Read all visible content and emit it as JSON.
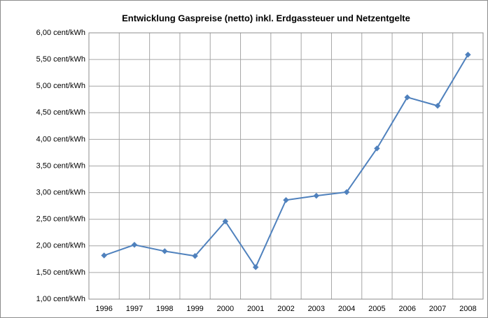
{
  "chart_data": {
    "type": "line",
    "title": "Entwicklung Gaspreise (netto) inkl. Erdgassteuer und Netzentgelte",
    "categories": [
      "1996",
      "1997",
      "1998",
      "1999",
      "2000",
      "2001",
      "2002",
      "2003",
      "2004",
      "2005",
      "2006",
      "2007",
      "2008"
    ],
    "series": [
      {
        "color": "#4f81bd",
        "values": [
          1.82,
          2.02,
          1.9,
          1.81,
          2.46,
          1.6,
          2.86,
          2.94,
          3.01,
          3.83,
          4.79,
          4.63,
          5.59
        ]
      }
    ],
    "ylim": [
      1,
      6
    ],
    "yticks": [
      {
        "value": 1,
        "label": "1,00 cent/kWh"
      },
      {
        "value": 1.5,
        "label": "1,50 cent/kWh"
      },
      {
        "value": 2,
        "label": "2,00 cent/kWh"
      },
      {
        "value": 2.5,
        "label": "2,50 cent/kWh"
      },
      {
        "value": 3,
        "label": "3,00 cent/kWh"
      },
      {
        "value": 3.5,
        "label": "3,50 cent/kWh"
      },
      {
        "value": 4,
        "label": "4,00 cent/kWh"
      },
      {
        "value": 4.5,
        "label": "4,50 cent/kWh"
      },
      {
        "value": 5,
        "label": "5,00 cent/kWh"
      },
      {
        "value": 5.5,
        "label": "5,50 cent/kWh"
      },
      {
        "value": 6,
        "label": "6,00 cent/kWh"
      }
    ],
    "grid": true
  }
}
